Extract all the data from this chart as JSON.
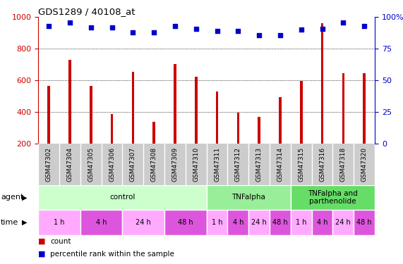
{
  "title": "GDS1289 / 40108_at",
  "samples": [
    "GSM47302",
    "GSM47304",
    "GSM47305",
    "GSM47306",
    "GSM47307",
    "GSM47308",
    "GSM47309",
    "GSM47310",
    "GSM47311",
    "GSM47312",
    "GSM47313",
    "GSM47314",
    "GSM47315",
    "GSM47316",
    "GSM47318",
    "GSM47320"
  ],
  "counts": [
    565,
    730,
    565,
    390,
    655,
    340,
    705,
    625,
    530,
    395,
    370,
    495,
    595,
    960,
    645,
    645
  ],
  "percentile": [
    93,
    96,
    92,
    92,
    88,
    88,
    93,
    91,
    89,
    89,
    86,
    86,
    90,
    91,
    96,
    93
  ],
  "bar_color": "#cc0000",
  "dot_color": "#0000cc",
  "ylim_left": [
    200,
    1000
  ],
  "ylim_right": [
    0,
    100
  ],
  "yticks_left": [
    200,
    400,
    600,
    800,
    1000
  ],
  "yticks_right": [
    0,
    25,
    50,
    75,
    100
  ],
  "agent_groups": [
    {
      "label": "control",
      "start": 0,
      "end": 8,
      "color": "#ccffcc"
    },
    {
      "label": "TNFalpha",
      "start": 8,
      "end": 12,
      "color": "#99ee99"
    },
    {
      "label": "TNFalpha and\nparthenolide",
      "start": 12,
      "end": 16,
      "color": "#66dd66"
    }
  ],
  "time_groups": [
    {
      "label": "1 h",
      "start": 0,
      "end": 2,
      "color": "#ffaaff"
    },
    {
      "label": "4 h",
      "start": 2,
      "end": 4,
      "color": "#dd55dd"
    },
    {
      "label": "24 h",
      "start": 4,
      "end": 6,
      "color": "#ffaaff"
    },
    {
      "label": "48 h",
      "start": 6,
      "end": 8,
      "color": "#dd55dd"
    },
    {
      "label": "1 h",
      "start": 8,
      "end": 9,
      "color": "#ffaaff"
    },
    {
      "label": "4 h",
      "start": 9,
      "end": 10,
      "color": "#dd55dd"
    },
    {
      "label": "24 h",
      "start": 10,
      "end": 11,
      "color": "#ffaaff"
    },
    {
      "label": "48 h",
      "start": 11,
      "end": 12,
      "color": "#dd55dd"
    },
    {
      "label": "1 h",
      "start": 12,
      "end": 13,
      "color": "#ffaaff"
    },
    {
      "label": "4 h",
      "start": 13,
      "end": 14,
      "color": "#dd55dd"
    },
    {
      "label": "24 h",
      "start": 14,
      "end": 15,
      "color": "#ffaaff"
    },
    {
      "label": "48 h",
      "start": 15,
      "end": 16,
      "color": "#dd55dd"
    }
  ],
  "legend_count_color": "#cc0000",
  "legend_dot_color": "#0000cc",
  "bar_width": 0.12,
  "dot_size": 20,
  "sample_area_color": "#cccccc",
  "grid_dotted_ticks": [
    400,
    600,
    800
  ],
  "label_fontsize": 8,
  "tick_fontsize": 8,
  "sample_fontsize": 6.5
}
